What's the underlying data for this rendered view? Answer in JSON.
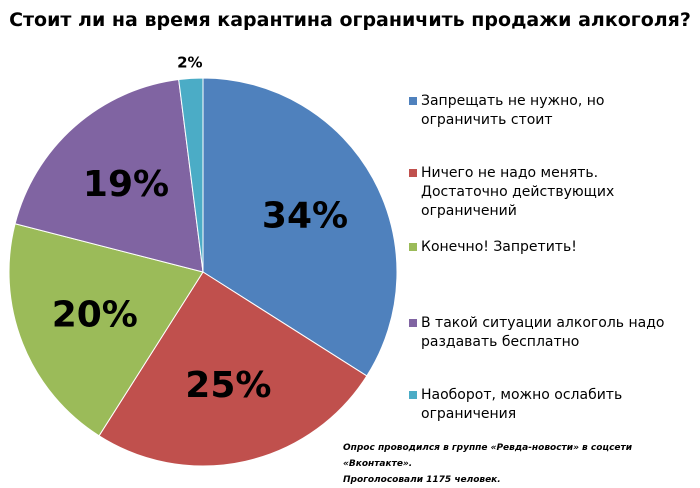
{
  "chart_data": {
    "type": "pie",
    "title": "Стоит ли на время карантина ограничить продажи алкоголя?",
    "slices": [
      {
        "label": "Запрещать не нужно, но ограничить стоит",
        "value": 34,
        "display": "34%",
        "color": "#4F81BD"
      },
      {
        "label": "Ничего не надо менять. Достаточно действующих ограничений",
        "value": 25,
        "display": "25%",
        "color": "#C0504D"
      },
      {
        "label": "Конечно! Запретить!",
        "value": 20,
        "display": "20%",
        "color": "#9BBB59"
      },
      {
        "label": "В такой ситуации алкоголь надо раздавать бесплатно",
        "value": 19,
        "display": "19%",
        "color": "#8064A2"
      },
      {
        "label": "Наоборот, можно ослабить ограничения",
        "value": 2,
        "display": "2%",
        "color": "#4BACC6"
      }
    ],
    "legend_position": "right"
  },
  "legend": {
    "items": [
      {
        "lines": [
          "Запрещать не нужно, но",
          "ограничить стоит"
        ],
        "color": "#4F81BD"
      },
      {
        "lines": [
          "Ничего не надо менять.",
          "Достаточно действующих",
          "ограничений"
        ],
        "color": "#C0504D"
      },
      {
        "lines": [
          "Конечно! Запретить!"
        ],
        "color": "#9BBB59"
      },
      {
        "lines": [
          "В такой ситуации алкоголь надо",
          "раздавать бесплатно"
        ],
        "color": "#8064A2"
      },
      {
        "lines": [
          "Наоборот, можно ослабить",
          "ограничения"
        ],
        "color": "#4BACC6"
      }
    ]
  },
  "footnote": {
    "line1": "Опрос проводился в группе «Ревда-новости» в соцсети «Вконтакте».",
    "line2": "Проголосовали 1175 человек."
  }
}
